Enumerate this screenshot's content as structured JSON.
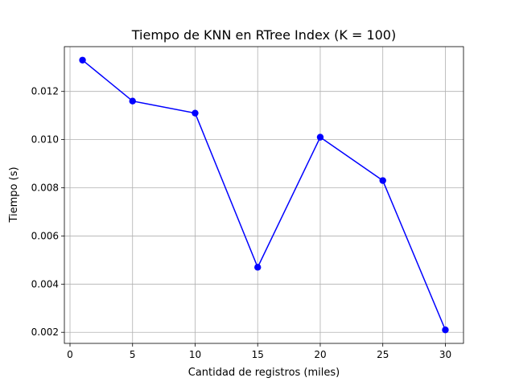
{
  "chart_data": {
    "type": "line",
    "title": "Tiempo de KNN en RTree Index (K = 100)",
    "xlabel": "Cantidad de registros (miles)",
    "ylabel": "Tiempo (s)",
    "x": [
      1,
      5,
      10,
      15,
      20,
      25,
      30
    ],
    "series": [
      {
        "values": [
          0.0133,
          0.0116,
          0.0111,
          0.0047,
          0.0101,
          0.0083,
          0.0021
        ],
        "color": "#0000ff",
        "marker": "circle"
      }
    ],
    "xlim": [
      -0.45,
      31.45
    ],
    "ylim": [
      0.00154,
      0.01386
    ],
    "xticks": [
      0,
      5,
      10,
      15,
      20,
      25,
      30
    ],
    "xtick_labels": [
      "0",
      "5",
      "10",
      "15",
      "20",
      "25",
      "30"
    ],
    "yticks": [
      0.002,
      0.004,
      0.006,
      0.008,
      0.01,
      0.012
    ],
    "ytick_labels": [
      "0.002",
      "0.004",
      "0.006",
      "0.008",
      "0.010",
      "0.012"
    ],
    "grid": true
  }
}
